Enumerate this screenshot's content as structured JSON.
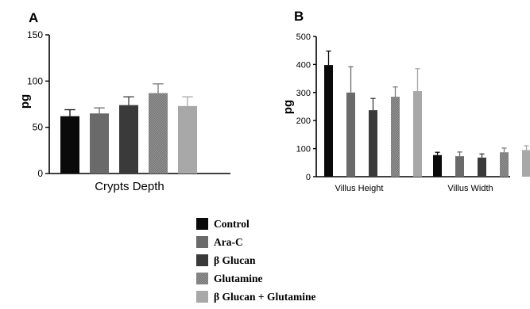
{
  "chart_data": [
    {
      "type": "bar",
      "panel": "A",
      "ylabel": "pg",
      "xlabel": "",
      "ylim": [
        0,
        150
      ],
      "yticks": [
        0,
        50,
        100,
        150
      ],
      "categories": [
        "Crypts Depth"
      ],
      "series": [
        {
          "name": "Control",
          "values": [
            62
          ],
          "errors": [
            7
          ]
        },
        {
          "name": "Ara-C",
          "values": [
            65
          ],
          "errors": [
            6
          ]
        },
        {
          "name": "β Glucan",
          "values": [
            74
          ],
          "errors": [
            9
          ]
        },
        {
          "name": "Glutamine",
          "values": [
            87
          ],
          "errors": [
            10
          ]
        },
        {
          "name": "β Glucan + Glutamine",
          "values": [
            73
          ],
          "errors": [
            10
          ]
        }
      ]
    },
    {
      "type": "bar",
      "panel": "B",
      "ylabel": "pg",
      "xlabel": "",
      "ylim": [
        0,
        500
      ],
      "yticks": [
        0,
        100,
        200,
        300,
        400,
        500
      ],
      "categories": [
        "Villus Height",
        "Villus Width"
      ],
      "series": [
        {
          "name": "Control",
          "values": [
            398,
            77
          ],
          "errors": [
            50,
            10
          ]
        },
        {
          "name": "Ara-C",
          "values": [
            300,
            73
          ],
          "errors": [
            92,
            15
          ]
        },
        {
          "name": "β Glucan",
          "values": [
            237,
            68
          ],
          "errors": [
            42,
            13
          ]
        },
        {
          "name": "Glutamine",
          "values": [
            285,
            87
          ],
          "errors": [
            35,
            15
          ]
        },
        {
          "name": "β Glucan + Glutamine",
          "values": [
            305,
            95
          ],
          "errors": [
            80,
            15
          ]
        }
      ]
    }
  ],
  "legend": [
    {
      "label": "Control",
      "color": "#0a0a0a",
      "pattern": "solid"
    },
    {
      "label": "Ara-C",
      "color": "#6a6a6a",
      "pattern": "solid"
    },
    {
      "label": "β Glucan",
      "color": "#3a3a3a",
      "pattern": "solid"
    },
    {
      "label": "Glutamine",
      "color": "#8c8c8c",
      "pattern": "checker"
    },
    {
      "label": "β Glucan + Glutamine",
      "color": "#a8a8a8",
      "pattern": "solid"
    }
  ]
}
